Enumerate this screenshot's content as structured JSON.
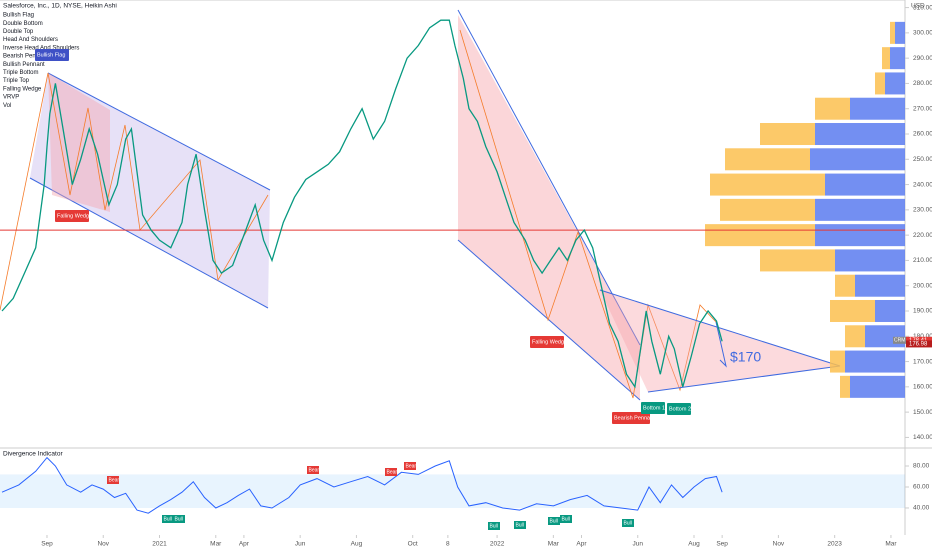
{
  "chart_data": [
    {
      "type": "line",
      "title": "Salesforce, Inc., 1D, NYSE, Heikin Ashi",
      "indicators": [
        "Bullish Flag",
        "Double Bottom",
        "Double Top",
        "Head And Shoulders",
        "Inverse Head And Shoulders",
        "Bearish Pennant",
        "Bullish Pennant",
        "Triple Bottom",
        "Triple Top",
        "Falling Wedge",
        "VRVP",
        "Vol"
      ],
      "currency": "USD",
      "x": [
        -1.6,
        -1.2,
        -0.8,
        -0.4,
        -0.1,
        0.0,
        0.1,
        0.3,
        0.6,
        0.9,
        1.2,
        1.5,
        1.8,
        2.0,
        2.2,
        2.5,
        2.8,
        3.0,
        3.2,
        3.4,
        3.7,
        4.0,
        4.4,
        4.8,
        5.0,
        5.3,
        5.6,
        5.9,
        6.2,
        6.6,
        7.0,
        7.4,
        7.7,
        8.0,
        8.4,
        8.8,
        9.2,
        9.6,
        10.0,
        10.4,
        10.8,
        11.2,
        11.6,
        12.0,
        12.4,
        12.8,
        13.2,
        13.6,
        14.0,
        14.3,
        14.5,
        14.8,
        15.0,
        15.3,
        15.6,
        16.0,
        16.3,
        16.6,
        17.0,
        17.3,
        17.6,
        17.9,
        18.2,
        18.5,
        18.8,
        19.1,
        19.4,
        19.7,
        20.0,
        20.3,
        20.6,
        20.9,
        21.1,
        21.3,
        21.5,
        21.8,
        22.1,
        22.3,
        22.6,
        22.9,
        23.2,
        23.5,
        23.8,
        24.0
      ],
      "series": [
        {
          "name": "CRM",
          "color": "#089981",
          "values": [
            190,
            195,
            205,
            215,
            240,
            255,
            268,
            280,
            260,
            240,
            250,
            262,
            252,
            242,
            232,
            240,
            258,
            262,
            245,
            228,
            222,
            218,
            215,
            225,
            240,
            252,
            230,
            210,
            205,
            208,
            220,
            232,
            218,
            210,
            225,
            235,
            242,
            245,
            248,
            253,
            262,
            270,
            258,
            265,
            278,
            290,
            295,
            302,
            305,
            305,
            295,
            282,
            270,
            265,
            255,
            245,
            235,
            225,
            218,
            210,
            205,
            210,
            215,
            210,
            218,
            222,
            215,
            200,
            185,
            178,
            165,
            160,
            175,
            190,
            178,
            165,
            180,
            175,
            160,
            172,
            185,
            190,
            186,
            178
          ]
        }
      ],
      "xlim": [
        -1.67,
        30.5
      ],
      "xticks": [
        {
          "value": 0,
          "label": "Sep"
        },
        {
          "value": 2,
          "label": "Nov"
        },
        {
          "value": 4,
          "label": "2021"
        },
        {
          "value": 6,
          "label": "Mar"
        },
        {
          "value": 7,
          "label": "Apr"
        },
        {
          "value": 9,
          "label": "Jun"
        },
        {
          "value": 11,
          "label": "Aug"
        },
        {
          "value": 13,
          "label": "Oct"
        },
        {
          "value": 14.25,
          "label": "8"
        },
        {
          "value": 16,
          "label": "2022"
        },
        {
          "value": 18,
          "label": "Mar"
        },
        {
          "value": 19,
          "label": "Apr"
        },
        {
          "value": 21,
          "label": "Jun"
        },
        {
          "value": 23,
          "label": "Aug"
        },
        {
          "value": 24,
          "label": "Sep"
        },
        {
          "value": 26,
          "label": "Nov"
        },
        {
          "value": 28,
          "label": "2023"
        },
        {
          "value": 30,
          "label": "Mar"
        }
      ],
      "ylim": [
        137,
        313
      ],
      "yticks": [
        {
          "value": 140,
          "label": "140.00"
        },
        {
          "value": 150,
          "label": "150.00"
        },
        {
          "value": 160,
          "label": "160.00"
        },
        {
          "value": 170,
          "label": "170.00"
        },
        {
          "value": 180,
          "label": "180.00"
        },
        {
          "value": 190,
          "label": "190.00"
        },
        {
          "value": 200,
          "label": "200.00"
        },
        {
          "value": 210,
          "label": "210.00"
        },
        {
          "value": 220,
          "label": "220.00"
        },
        {
          "value": 230,
          "label": "230.00"
        },
        {
          "value": 240,
          "label": "240.00"
        },
        {
          "value": 250,
          "label": "250.00"
        },
        {
          "value": 260,
          "label": "260.00"
        },
        {
          "value": 270,
          "label": "270.00"
        },
        {
          "value": 280,
          "label": "280.00"
        },
        {
          "value": 290,
          "label": "290.00"
        },
        {
          "value": 300,
          "label": "300.00"
        },
        {
          "value": 310,
          "label": "310.00"
        }
      ],
      "hline": 222,
      "last_prices": [
        {
          "value": 178.41,
          "label": "178.41"
        },
        {
          "value": 176.98,
          "label": "176.98"
        }
      ],
      "volume_profile": {
        "levels": [
          160,
          170,
          180,
          190,
          200,
          210,
          220,
          230,
          240,
          250,
          260,
          270,
          280,
          290,
          300
        ],
        "up": [
          55,
          60,
          40,
          30,
          50,
          70,
          90,
          90,
          80,
          95,
          90,
          55,
          20,
          15,
          10
        ],
        "down": [
          10,
          15,
          20,
          45,
          20,
          75,
          110,
          95,
          115,
          85,
          55,
          35,
          10,
          8,
          5
        ],
        "up_color": "#5b7bf0",
        "down_color": "#fbc04f"
      },
      "annotations": [
        "Bullish Flag",
        "Falling Wedge",
        "Falling Wedge",
        "Bearish Pennant",
        "Bottom 1",
        "Bottom 2",
        "$170"
      ]
    },
    {
      "type": "line",
      "title": "Divergence Indicator",
      "x": [
        -1.6,
        -1,
        -0.4,
        0,
        0.3,
        0.7,
        1.2,
        1.6,
        2.0,
        2.4,
        2.8,
        3.2,
        3.6,
        4.0,
        4.4,
        4.8,
        5.2,
        5.6,
        6.0,
        6.4,
        6.8,
        7.2,
        7.6,
        8.0,
        8.6,
        9.0,
        9.6,
        10.2,
        10.8,
        11.4,
        12.0,
        12.6,
        13.2,
        13.8,
        14.3,
        14.6,
        15.0,
        15.6,
        16.2,
        16.8,
        17.4,
        18.0,
        18.6,
        19.2,
        19.8,
        20.4,
        21.0,
        21.4,
        21.8,
        22.2,
        22.6,
        23.0,
        23.4,
        23.8,
        24.0
      ],
      "series": [
        {
          "name": "Divergence Indicator",
          "color": "#2962ff",
          "values": [
            55,
            62,
            75,
            88,
            80,
            62,
            55,
            62,
            58,
            50,
            54,
            38,
            35,
            42,
            48,
            55,
            65,
            50,
            40,
            45,
            52,
            58,
            42,
            40,
            50,
            62,
            68,
            60,
            65,
            70,
            62,
            74,
            72,
            80,
            85,
            60,
            42,
            45,
            40,
            38,
            44,
            42,
            48,
            52,
            42,
            40,
            38,
            60,
            45,
            62,
            50,
            60,
            68,
            70,
            55
          ]
        }
      ],
      "ylim": [
        19,
        90.5
      ],
      "yticks": [
        {
          "value": 40,
          "label": "40.00"
        },
        {
          "value": 60,
          "label": "60.00"
        },
        {
          "value": 80,
          "label": "80.00"
        }
      ],
      "band": [
        40,
        72
      ],
      "signals": [
        "Bear",
        "Bear",
        "Bear",
        "Bear",
        "Bull",
        "Bull",
        "Bull",
        "Bull",
        "Bull",
        "Bull",
        "Bull"
      ]
    }
  ]
}
